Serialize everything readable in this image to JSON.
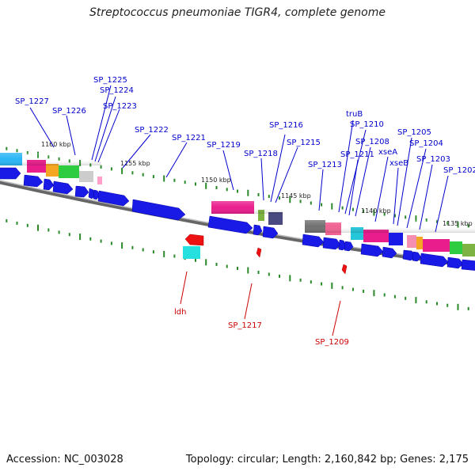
{
  "title": "Streptococcus pneumoniae TIGR4, complete genome",
  "footer": {
    "accession": "Accession: NC_003028",
    "info": "Topology: circular; Length: 2,160,842 bp; Genes: 2,175"
  },
  "colors": {
    "forward_label": "#0000cc",
    "reverse_label": "#cc0000",
    "gene_blue": "#1a1ae6",
    "tick": "#2a8a2a",
    "backbone": "#777777"
  },
  "kbp_labels": [
    "1160 kbp",
    "1155 kbp",
    "1150 kbp",
    "1145 kbp",
    "1140 kbp",
    "1135 kbp"
  ],
  "forward_labels": [
    "SP_1225",
    "SP_1224",
    "SP_1227",
    "SP_1223",
    "SP_1226",
    "SP_1222",
    "SP_1221",
    "SP_1219",
    "SP_1218",
    "SP_1216",
    "SP_1215",
    "SP_1213",
    "truB",
    "SP_1210",
    "SP_1211",
    "SP_1208",
    "xseA",
    "xseB",
    "SP_1205",
    "SP_1204",
    "SP_1203",
    "SP_1202"
  ],
  "reverse_labels": [
    "ldh",
    "SP_1217",
    "SP_1209"
  ]
}
